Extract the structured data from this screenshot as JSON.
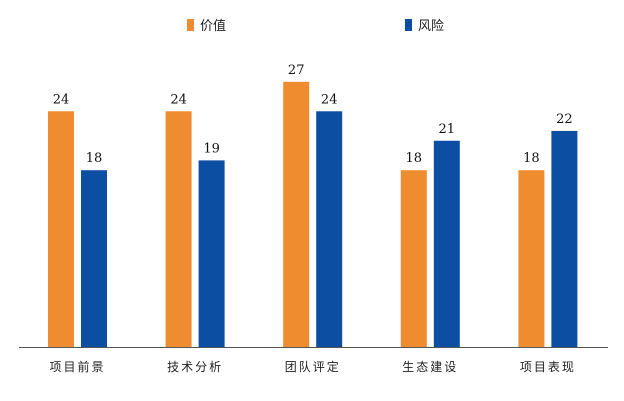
{
  "chart_data": {
    "type": "bar",
    "title": "",
    "xlabel": "",
    "ylabel": "",
    "ylim": [
      0,
      28
    ],
    "grid": false,
    "legend_position": "top",
    "categories": [
      "项目前景",
      "技术分析",
      "团队评定",
      "生态建设",
      "项目表现"
    ],
    "series": [
      {
        "name": "价值",
        "color": "#F08C30",
        "values": [
          24,
          24,
          27,
          18,
          18
        ]
      },
      {
        "name": "风险",
        "color": "#0B4EA2",
        "values": [
          18,
          19,
          24,
          21,
          22
        ]
      }
    ]
  }
}
